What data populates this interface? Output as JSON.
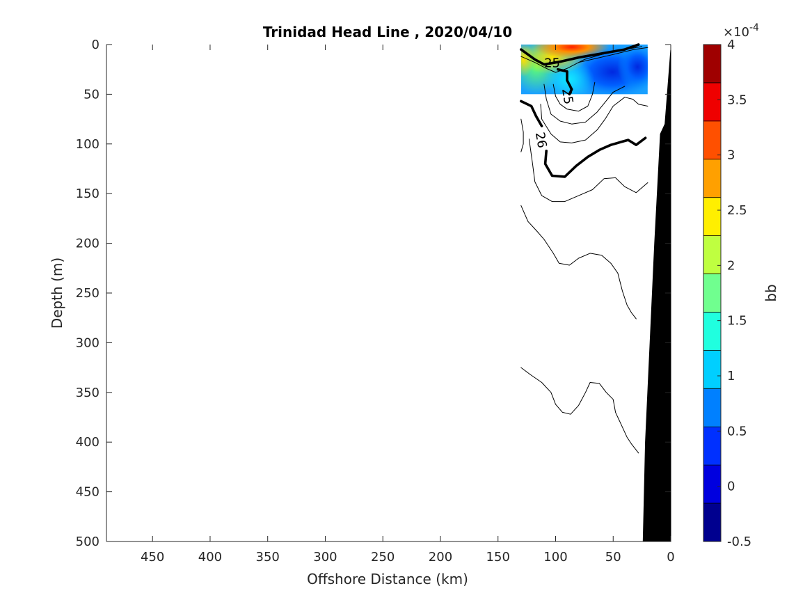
{
  "chart_data": {
    "type": "contour",
    "title": "Trinidad Head Line , 2020/04/10",
    "xlabel": "Offshore Distance (km)",
    "ylabel": "Depth (m)",
    "xlim": [
      490,
      0
    ],
    "ylim": [
      0,
      500
    ],
    "x_reversed": true,
    "y_reversed": true,
    "x_ticks": [
      450,
      400,
      350,
      300,
      250,
      200,
      150,
      100,
      50,
      0
    ],
    "y_ticks": [
      0,
      50,
      100,
      150,
      200,
      250,
      300,
      350,
      400,
      450,
      500
    ],
    "colorbar": {
      "label": "bb",
      "exponent_label": "×10",
      "exponent_power": "-4",
      "range": [
        -0.5,
        4
      ],
      "tick_values": [
        -0.5,
        0,
        0.5,
        1,
        1.5,
        2,
        2.5,
        3,
        3.5,
        4
      ],
      "tick_labels": [
        "-0.5",
        "0",
        "0.5",
        "1",
        "1.5",
        "2",
        "2.5",
        "3",
        "3.5",
        "4"
      ],
      "colors": [
        "#00008f",
        "#0000df",
        "#0030ff",
        "#0080ff",
        "#00cfff",
        "#20ffdf",
        "#70ff8f",
        "#bfff40",
        "#ffef00",
        "#ffa000",
        "#ff5000",
        "#ef0000",
        "#9f0000"
      ]
    },
    "filled_region": {
      "x_range": [
        130,
        20
      ],
      "depth_range": [
        0,
        50
      ]
    },
    "contour_labels": [
      {
        "text": "25",
        "x": 103,
        "y": 18
      },
      {
        "text": "25",
        "x": 89,
        "y": 52
      },
      {
        "text": "26",
        "x": 112,
        "y": 96
      }
    ],
    "contour_lines": [
      {
        "weight": "bold",
        "points": [
          [
            130,
            5
          ],
          [
            118,
            15
          ],
          [
            110,
            20
          ],
          [
            95,
            17
          ],
          [
            80,
            13
          ],
          [
            60,
            9
          ],
          [
            40,
            5
          ],
          [
            28,
            0
          ]
        ]
      },
      {
        "weight": "bold",
        "points": [
          [
            98,
            25
          ],
          [
            90,
            27
          ],
          [
            90,
            36
          ],
          [
            86,
            45
          ],
          [
            88,
            50
          ]
        ]
      },
      {
        "weight": "bold",
        "points": [
          [
            130,
            57
          ],
          [
            121,
            62
          ],
          [
            117,
            72
          ],
          [
            112,
            82
          ]
        ]
      },
      {
        "weight": "bold",
        "points": [
          [
            108,
            107
          ],
          [
            109,
            120
          ],
          [
            103,
            132
          ],
          [
            92,
            133
          ],
          [
            82,
            122
          ],
          [
            72,
            113
          ],
          [
            62,
            106
          ],
          [
            52,
            101
          ],
          [
            43,
            98
          ],
          [
            37,
            96
          ],
          [
            30,
            101
          ],
          [
            22,
            94
          ]
        ]
      },
      {
        "weight": "thin",
        "points": [
          [
            130,
            12
          ],
          [
            118,
            18
          ],
          [
            108,
            24
          ],
          [
            100,
            28
          ],
          [
            90,
            24
          ],
          [
            75,
            15
          ],
          [
            60,
            10
          ],
          [
            45,
            6
          ],
          [
            25,
            2
          ]
        ]
      },
      {
        "weight": "thin",
        "points": [
          [
            80,
            18
          ],
          [
            65,
            14
          ],
          [
            50,
            10
          ],
          [
            32,
            5
          ],
          [
            20,
            3
          ]
        ]
      },
      {
        "weight": "thin",
        "points": [
          [
            102,
            40
          ],
          [
            100,
            52
          ],
          [
            96,
            60
          ],
          [
            90,
            65
          ],
          [
            80,
            67
          ],
          [
            72,
            62
          ],
          [
            68,
            50
          ],
          [
            66,
            38
          ]
        ]
      },
      {
        "weight": "thin",
        "points": [
          [
            110,
            40
          ],
          [
            108,
            55
          ],
          [
            104,
            70
          ],
          [
            96,
            77
          ],
          [
            86,
            80
          ],
          [
            74,
            78
          ],
          [
            64,
            68
          ],
          [
            57,
            58
          ],
          [
            50,
            48
          ],
          [
            40,
            42
          ]
        ]
      },
      {
        "weight": "thin",
        "points": [
          [
            130,
            75
          ],
          [
            128,
            88
          ],
          [
            128,
            100
          ],
          [
            130,
            108
          ]
        ]
      },
      {
        "weight": "thin",
        "points": [
          [
            113,
            60
          ],
          [
            112,
            75
          ],
          [
            104,
            90
          ],
          [
            96,
            98
          ],
          [
            86,
            99
          ],
          [
            74,
            96
          ],
          [
            64,
            86
          ],
          [
            57,
            75
          ],
          [
            50,
            62
          ],
          [
            40,
            53
          ],
          [
            33,
            55
          ],
          [
            28,
            60
          ],
          [
            20,
            62
          ]
        ]
      },
      {
        "weight": "thin",
        "points": [
          [
            123,
            95
          ],
          [
            120,
            120
          ],
          [
            118,
            138
          ],
          [
            112,
            152
          ],
          [
            103,
            158
          ],
          [
            92,
            158
          ],
          [
            80,
            152
          ],
          [
            68,
            146
          ],
          [
            58,
            135
          ],
          [
            48,
            134
          ],
          [
            40,
            143
          ],
          [
            30,
            149
          ],
          [
            20,
            139
          ]
        ]
      },
      {
        "weight": "thin",
        "points": [
          [
            130,
            162
          ],
          [
            124,
            178
          ],
          [
            116,
            188
          ],
          [
            110,
            196
          ],
          [
            102,
            210
          ],
          [
            97,
            220
          ],
          [
            88,
            222
          ],
          [
            80,
            215
          ],
          [
            70,
            210
          ],
          [
            60,
            212
          ],
          [
            52,
            220
          ],
          [
            46,
            230
          ],
          [
            42,
            248
          ],
          [
            38,
            262
          ],
          [
            34,
            270
          ],
          [
            30,
            276
          ]
        ]
      },
      {
        "weight": "thin",
        "points": [
          [
            130,
            325
          ],
          [
            122,
            332
          ],
          [
            112,
            340
          ],
          [
            104,
            350
          ],
          [
            100,
            362
          ],
          [
            94,
            370
          ],
          [
            87,
            372
          ],
          [
            80,
            363
          ],
          [
            74,
            350
          ],
          [
            70,
            340
          ],
          [
            62,
            341
          ],
          [
            56,
            350
          ],
          [
            50,
            357
          ],
          [
            48,
            370
          ],
          [
            44,
            380
          ],
          [
            38,
            395
          ],
          [
            34,
            402
          ],
          [
            28,
            411
          ]
        ]
      }
    ],
    "bathymetry": [
      [
        0,
        5
      ],
      [
        5,
        80
      ],
      [
        9,
        90
      ],
      [
        14,
        200
      ],
      [
        18,
        300
      ],
      [
        22,
        400
      ],
      [
        24,
        500
      ],
      [
        0,
        500
      ]
    ]
  }
}
